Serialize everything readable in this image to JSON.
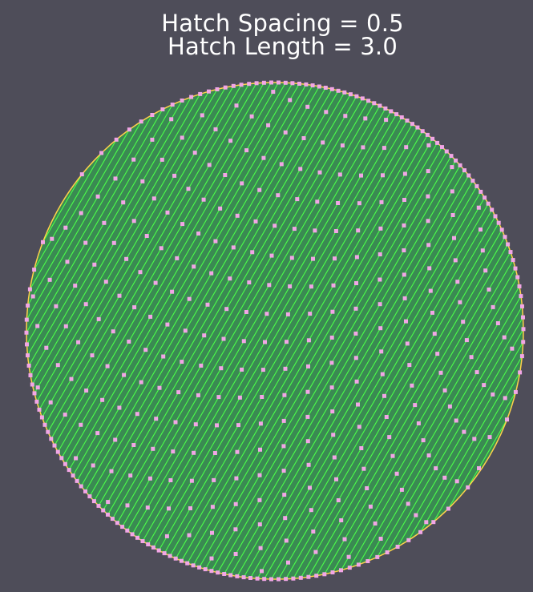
{
  "title": {
    "line1": "Hatch Spacing = 0.5",
    "line2": "Hatch Length = 3.0"
  },
  "hatch": {
    "spacing": 0.5,
    "length": 3.0,
    "angle_deg": 60,
    "line_count": 80
  },
  "colors": {
    "background": "#4e4d59",
    "title_text": "#ffffff",
    "outline": "#ffd24a",
    "fill": "#3a8a52",
    "hatch_line": "#4cff4a",
    "points": "#f2a6e6"
  }
}
